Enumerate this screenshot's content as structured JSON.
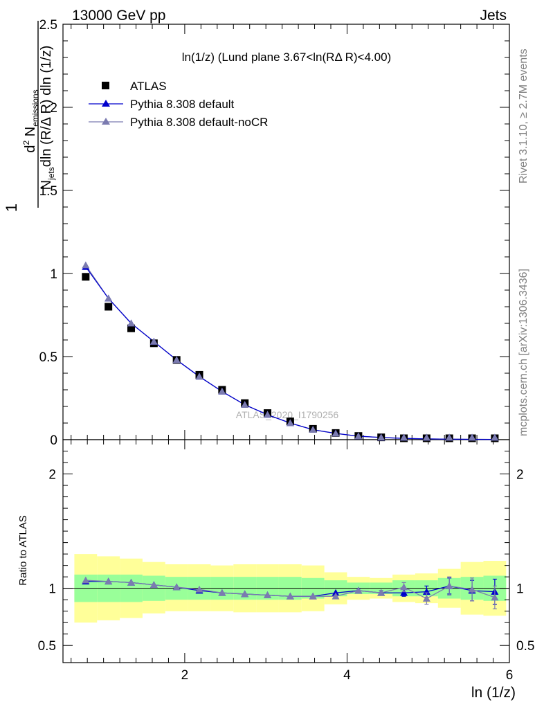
{
  "header": {
    "left": "13000 GeV pp",
    "right": "Jets"
  },
  "side_labels": {
    "rivet": "Rivet 3.1.10, ≥ 2.7M events",
    "mcplots": "mcplots.cern.ch [arXiv:1306.3436]"
  },
  "watermark": "ATLAS_2020_I1790256",
  "legend": {
    "items": [
      {
        "label": "ATLAS",
        "marker": "square",
        "color": "#000000"
      },
      {
        "label": "Pythia 8.308 default",
        "marker": "triangle",
        "color": "#0000cc"
      },
      {
        "label": "Pythia 8.308 default-noCR",
        "marker": "triangle",
        "color": "#7b7bb0"
      }
    ]
  },
  "colors": {
    "data": "#000000",
    "default": "#0000cc",
    "noCR": "#7b7bb0",
    "band_inner": "#99ff99",
    "band_outer": "#ffff99"
  },
  "chart_data": [
    {
      "type": "scatter",
      "title": "ln(1/z) (Lund plane 3.67<ln(RΔ R)<4.00)",
      "xlabel": "ln (1/z)",
      "ylabel": "1/N_jets d²N_emissions / dln(R/Δ R) dln(1/z)",
      "ylabel_parts": {
        "frac_one": "1",
        "n_jets": "N",
        "jets_sub": "jets",
        "dln1": "dln (R/Δ R) dln (1/z)",
        "d2": "d",
        "d2_sup": "2",
        "n_em": "N",
        "em_sub": "emissions"
      },
      "xlim": [
        0.5,
        6.0
      ],
      "ylim": [
        0,
        2.5
      ],
      "y_ticks": [
        0,
        0.5,
        1,
        1.5,
        2,
        2.5
      ],
      "y_tick_labels": [
        "0",
        "0.5",
        "1",
        "1.5",
        "2",
        "2.5"
      ],
      "x": [
        0.78,
        1.06,
        1.34,
        1.62,
        1.9,
        2.18,
        2.46,
        2.74,
        3.02,
        3.3,
        3.58,
        3.86,
        4.14,
        4.42,
        4.7,
        4.98,
        5.26,
        5.54,
        5.82
      ],
      "series": [
        {
          "name": "ATLAS",
          "values": [
            0.98,
            0.8,
            0.67,
            0.58,
            0.48,
            0.39,
            0.3,
            0.22,
            0.16,
            0.11,
            0.065,
            0.04,
            0.022,
            0.014,
            0.008,
            0.005,
            0.003,
            0.002,
            0.0015
          ]
        },
        {
          "name": "Pythia 8.308 default",
          "values": [
            1.04,
            0.85,
            0.7,
            0.59,
            0.48,
            0.38,
            0.29,
            0.21,
            0.15,
            0.1,
            0.06,
            0.038,
            0.021,
            0.013,
            0.0075,
            0.0048,
            0.003,
            0.002,
            0.0014
          ]
        },
        {
          "name": "Pythia 8.308 default-noCR",
          "values": [
            1.05,
            0.85,
            0.7,
            0.59,
            0.48,
            0.38,
            0.29,
            0.21,
            0.15,
            0.1,
            0.06,
            0.037,
            0.021,
            0.013,
            0.0077,
            0.0046,
            0.003,
            0.002,
            0.0014
          ]
        }
      ]
    },
    {
      "type": "scatter",
      "ylabel": "Ratio to ATLAS",
      "xlabel": "ln (1/z)",
      "xlim": [
        0.5,
        6.0
      ],
      "ylim": [
        0.35,
        2.3
      ],
      "y_ticks": [
        0.5,
        1,
        2
      ],
      "y_tick_labels": [
        "0.5",
        "1",
        "2"
      ],
      "x_ticks": [
        2,
        4,
        6
      ],
      "x_tick_labels": [
        "2",
        "4",
        "6"
      ],
      "x": [
        0.78,
        1.06,
        1.34,
        1.62,
        1.9,
        2.18,
        2.46,
        2.74,
        3.02,
        3.3,
        3.58,
        3.86,
        4.14,
        4.42,
        4.7,
        4.98,
        5.26,
        5.54,
        5.82
      ],
      "bin_edges": [
        0.64,
        0.92,
        1.2,
        1.48,
        1.76,
        2.04,
        2.32,
        2.6,
        2.88,
        3.16,
        3.44,
        3.72,
        4.0,
        4.28,
        4.56,
        4.84,
        5.12,
        5.4,
        5.68,
        5.96
      ],
      "band_inner": {
        "lo": [
          0.88,
          0.88,
          0.88,
          0.89,
          0.9,
          0.9,
          0.9,
          0.9,
          0.9,
          0.9,
          0.91,
          0.93,
          0.95,
          0.95,
          0.93,
          0.93,
          0.91,
          0.9,
          0.89
        ],
        "hi": [
          1.12,
          1.12,
          1.12,
          1.11,
          1.1,
          1.1,
          1.1,
          1.1,
          1.1,
          1.1,
          1.09,
          1.07,
          1.05,
          1.05,
          1.07,
          1.07,
          1.09,
          1.1,
          1.11
        ]
      },
      "band_outer": {
        "lo": [
          0.7,
          0.72,
          0.74,
          0.78,
          0.8,
          0.8,
          0.8,
          0.79,
          0.79,
          0.79,
          0.8,
          0.86,
          0.9,
          0.91,
          0.88,
          0.87,
          0.83,
          0.77,
          0.76
        ],
        "hi": [
          1.3,
          1.28,
          1.26,
          1.23,
          1.21,
          1.21,
          1.2,
          1.21,
          1.21,
          1.21,
          1.2,
          1.14,
          1.1,
          1.09,
          1.12,
          1.13,
          1.17,
          1.23,
          1.24
        ]
      },
      "series": [
        {
          "name": "Pythia 8.308 default",
          "values": [
            1.06,
            1.06,
            1.05,
            1.03,
            1.01,
            0.98,
            0.96,
            0.95,
            0.94,
            0.93,
            0.93,
            0.96,
            0.98,
            0.96,
            0.96,
            0.97,
            1.02,
            0.98,
            0.97
          ],
          "err": [
            0.005,
            0.005,
            0.005,
            0.005,
            0.005,
            0.005,
            0.005,
            0.005,
            0.005,
            0.005,
            0.008,
            0.01,
            0.015,
            0.02,
            0.03,
            0.05,
            0.07,
            0.09,
            0.11
          ]
        },
        {
          "name": "Pythia 8.308 default-noCR",
          "values": [
            1.07,
            1.06,
            1.05,
            1.03,
            1.01,
            0.99,
            0.96,
            0.95,
            0.94,
            0.93,
            0.93,
            0.93,
            0.98,
            0.96,
            1.01,
            0.91,
            1.02,
            0.99,
            0.92
          ],
          "err": [
            0.005,
            0.005,
            0.005,
            0.005,
            0.005,
            0.005,
            0.005,
            0.005,
            0.005,
            0.005,
            0.008,
            0.01,
            0.015,
            0.02,
            0.04,
            0.05,
            0.08,
            0.1,
            0.1
          ]
        }
      ]
    }
  ]
}
